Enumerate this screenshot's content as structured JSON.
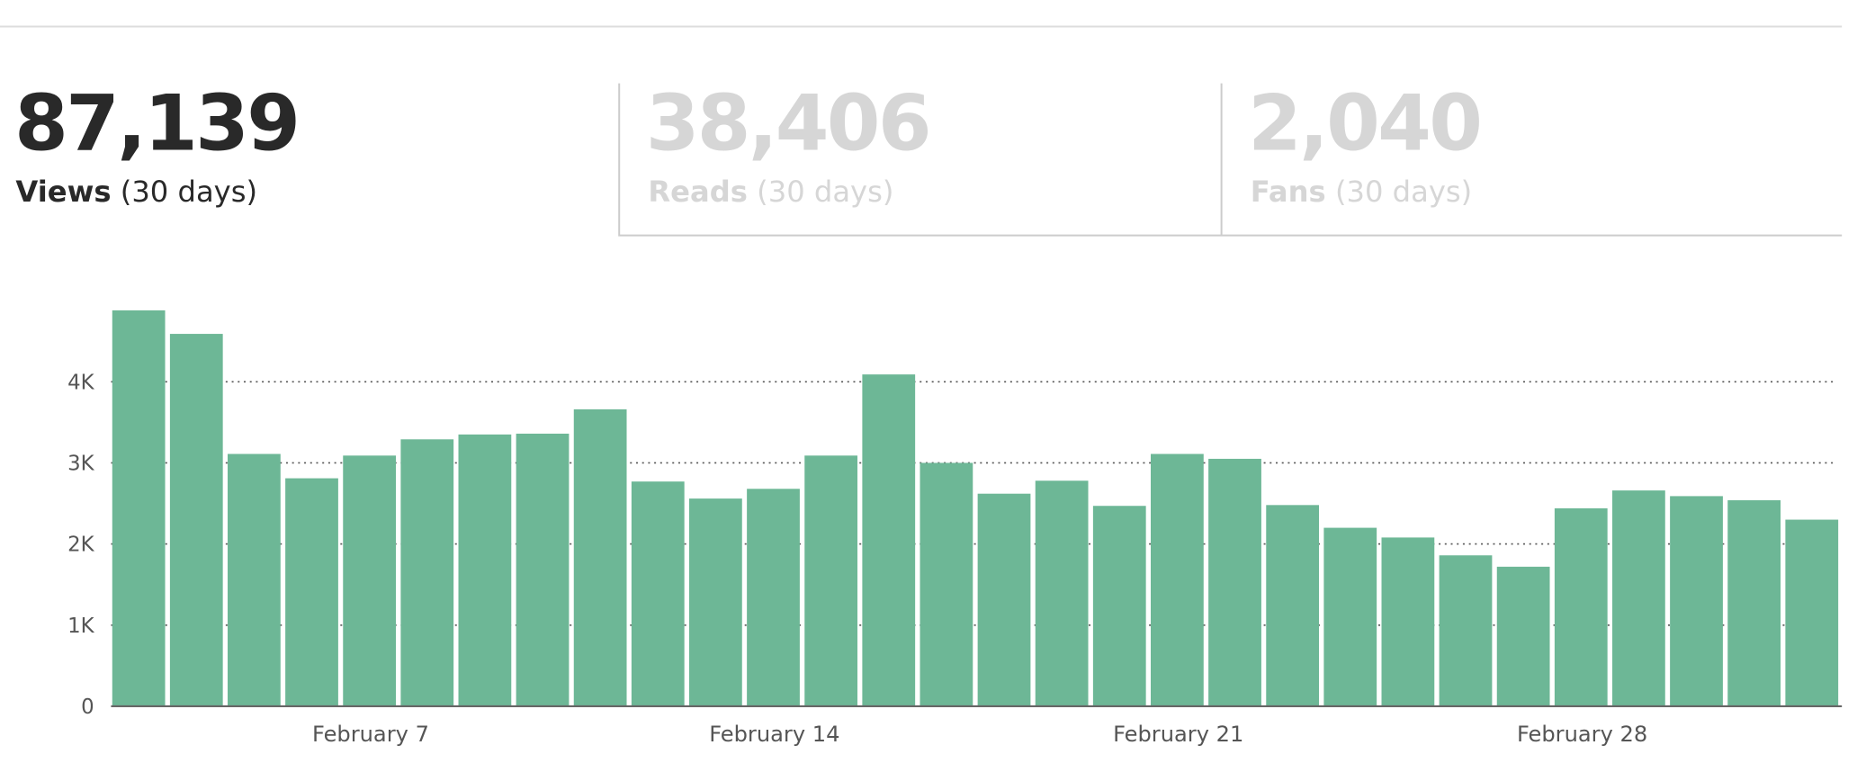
{
  "stats": [
    {
      "value": "87,139",
      "label": "Views",
      "period": "(30 days)"
    },
    {
      "value": "38,406",
      "label": "Reads",
      "period": "(30 days)"
    },
    {
      "value": "2,040",
      "label": "Fans",
      "period": "(30 days)"
    }
  ],
  "chart_data": {
    "type": "bar",
    "categories": [
      null,
      null,
      null,
      null,
      "February 7",
      null,
      null,
      null,
      null,
      null,
      null,
      "February 14",
      null,
      null,
      null,
      null,
      null,
      null,
      "February 21",
      null,
      null,
      null,
      null,
      null,
      null,
      "February 28",
      null,
      null,
      null,
      null
    ],
    "values": [
      4880,
      4590,
      3110,
      2810,
      3090,
      3290,
      3350,
      3360,
      3660,
      2770,
      2560,
      2680,
      3090,
      4090,
      3000,
      2620,
      2780,
      2470,
      3110,
      3050,
      2480,
      2200,
      2080,
      1860,
      1720,
      2440,
      2660,
      2590,
      2540,
      2300
    ],
    "color": "#6db796",
    "ylim": [
      0,
      5000
    ],
    "yticks": [
      0,
      {
        "value": 1000,
        "label": "1K"
      },
      {
        "value": 2000,
        "label": "2K"
      },
      {
        "value": 3000,
        "label": "3K"
      },
      {
        "value": 4000,
        "label": "4K"
      }
    ],
    "grid": true
  }
}
